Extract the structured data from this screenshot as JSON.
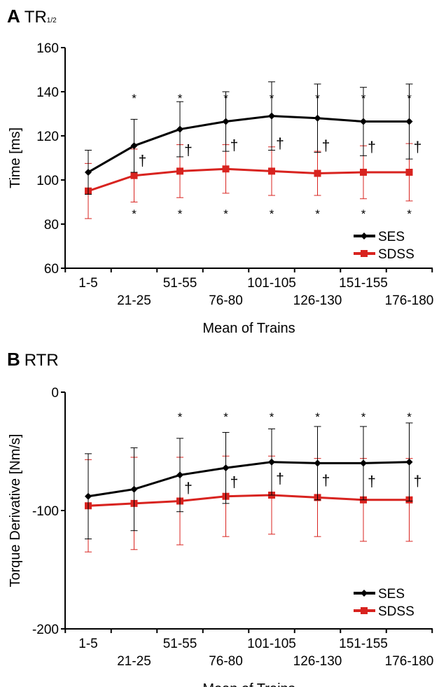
{
  "chart_data": [
    {
      "type": "line",
      "panel_letter": "A",
      "title": "TR",
      "title_subscript": "1/2",
      "xlabel": "Mean of Trains",
      "ylabel": "Time [ms]",
      "ylim": [
        60,
        160
      ],
      "yticks": [
        60,
        80,
        100,
        120,
        140,
        160
      ],
      "categories": [
        "1-5",
        "21-25",
        "51-55",
        "76-80",
        "101-105",
        "126-130",
        "151-155",
        "176-180"
      ],
      "series": [
        {
          "name": "SES",
          "color": "#000000",
          "marker": "diamond",
          "values": [
            103.5,
            115.5,
            123,
            126.5,
            129,
            128,
            126.5,
            126.5
          ],
          "errors": [
            10,
            12,
            12.5,
            13.5,
            15.5,
            15.5,
            15.5,
            17
          ]
        },
        {
          "name": "SDSS",
          "color": "#d8231f",
          "marker": "square",
          "values": [
            95,
            102,
            104,
            105,
            104,
            103,
            103.5,
            103.5
          ],
          "errors": [
            12.5,
            12,
            12,
            11,
            11,
            10,
            12,
            13
          ]
        }
      ],
      "star_above": [
        false,
        true,
        true,
        true,
        true,
        true,
        true,
        true
      ],
      "star_below": [
        false,
        true,
        true,
        true,
        true,
        true,
        true,
        true
      ],
      "star_symbol": "*",
      "dagger": [
        false,
        true,
        true,
        true,
        true,
        true,
        true,
        true
      ],
      "dagger_symbol": "†",
      "legend_position": "bottom-right"
    },
    {
      "type": "line",
      "panel_letter": "B",
      "title": "RTR",
      "title_subscript": "",
      "xlabel": "Mean of Trains",
      "ylabel": "Torque Derivative [Nm/s]",
      "ylim": [
        -200,
        0
      ],
      "yticks": [
        -200,
        -100,
        0
      ],
      "categories": [
        "1-5",
        "21-25",
        "51-55",
        "76-80",
        "101-105",
        "126-130",
        "151-155",
        "176-180"
      ],
      "series": [
        {
          "name": "SES",
          "color": "#000000",
          "marker": "diamond",
          "values": [
            -88,
            -82,
            -70,
            -64,
            -59,
            -60,
            -60,
            -59
          ],
          "errors": [
            36,
            35,
            31,
            30,
            28,
            31,
            31,
            33
          ]
        },
        {
          "name": "SDSS",
          "color": "#d8231f",
          "marker": "square",
          "values": [
            -96,
            -94,
            -92,
            -88,
            -87,
            -89,
            -91,
            -91
          ],
          "errors": [
            39,
            39,
            37,
            34,
            33,
            33,
            35,
            35
          ]
        }
      ],
      "star_above": [
        false,
        false,
        true,
        true,
        true,
        true,
        true,
        true
      ],
      "star_below": [
        false,
        false,
        false,
        false,
        false,
        false,
        false,
        false
      ],
      "star_symbol": "*",
      "dagger": [
        false,
        false,
        true,
        true,
        true,
        true,
        true,
        true
      ],
      "dagger_symbol": "†",
      "legend_position": "bottom-right"
    }
  ]
}
